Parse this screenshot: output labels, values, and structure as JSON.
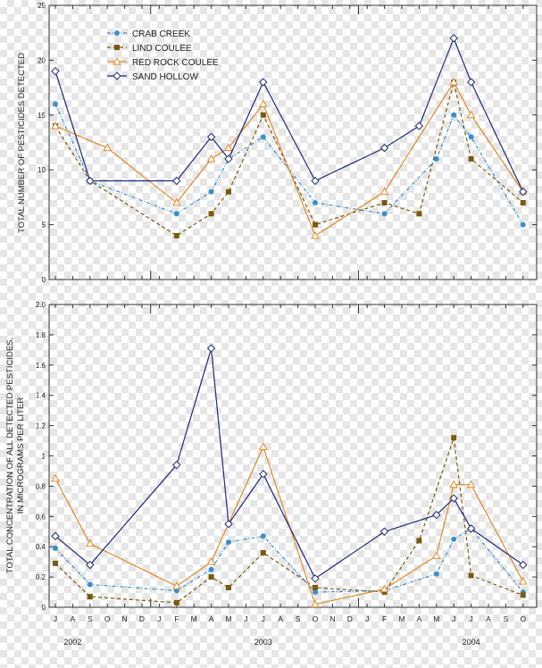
{
  "chart_data": [
    {
      "type": "line",
      "ylabel": "TOTAL NUMBER OF PESTICIDES DETECTED",
      "ylim": [
        0,
        25
      ],
      "yticks": [
        0,
        5,
        10,
        15,
        20,
        25
      ],
      "ytick_labels": [
        "0",
        "5",
        "10",
        "15",
        "20",
        "25"
      ],
      "grid": false,
      "legend_position": "top-left",
      "series": [
        {
          "name": "CRAB CREEK",
          "color": "#3a8fd0",
          "dash": "dashdot",
          "marker": "circle",
          "x": [
            "2002-07",
            "2002-09",
            "2003-02",
            "2003-04",
            "2003-05",
            "2003-07",
            "2003-10",
            "2004-02",
            "2004-05",
            "2004-06",
            "2004-07",
            "2004-10"
          ],
          "values": [
            16,
            9,
            6,
            8,
            11,
            13,
            7,
            6,
            11,
            15,
            13,
            5
          ]
        },
        {
          "name": "LIND COULEE",
          "color": "#7a5a10",
          "dash": "dashed",
          "marker": "square",
          "x": [
            "2002-07",
            "2002-09",
            "2003-02",
            "2003-04",
            "2003-05",
            "2003-07",
            "2003-10",
            "2004-02",
            "2004-04",
            "2004-06",
            "2004-07",
            "2004-10"
          ],
          "values": [
            14,
            9,
            4,
            6,
            8,
            15,
            5,
            7,
            6,
            18,
            11,
            7
          ]
        },
        {
          "name": "RED ROCK COULEE",
          "color": "#e08a2a",
          "dash": "solid",
          "marker": "triangle",
          "x": [
            "2002-07",
            "2002-10",
            "2003-02",
            "2003-04",
            "2003-05",
            "2003-07",
            "2003-10",
            "2004-02",
            "2004-06",
            "2004-07",
            "2004-10"
          ],
          "values": [
            14,
            12,
            7,
            11,
            12,
            16,
            4,
            8,
            18,
            15,
            8
          ]
        },
        {
          "name": "SAND HOLLOW",
          "color": "#1e2a78",
          "dash": "solid",
          "marker": "diamond",
          "x": [
            "2002-07",
            "2002-09",
            "2003-02",
            "2003-04",
            "2003-05",
            "2003-07",
            "2003-10",
            "2004-02",
            "2004-04",
            "2004-06",
            "2004-07",
            "2004-10"
          ],
          "values": [
            19,
            9,
            9,
            13,
            11,
            18,
            9,
            12,
            14,
            22,
            18,
            8
          ]
        }
      ]
    },
    {
      "type": "line",
      "ylabel_lines": [
        "TOTAL CONCENTRATION OF ALL DETECTED PESTICIDES,",
        "IN MICROGRAMS PER LITER"
      ],
      "ylim": [
        0,
        2.0
      ],
      "yticks": [
        0,
        0.2,
        0.4,
        0.6,
        0.8,
        1.0,
        1.2,
        1.4,
        1.6,
        1.8,
        2.0
      ],
      "ytick_labels": [
        "0",
        "0.2",
        "0.4",
        "0.6",
        "0.8",
        "1",
        "1.2",
        "1.4",
        "1.6",
        "1.8",
        "2.0"
      ],
      "grid": false,
      "x_month_labels": [
        "J",
        "A",
        "S",
        "O",
        "N",
        "D",
        "J",
        "F",
        "M",
        "A",
        "M",
        "J",
        "J",
        "A",
        "S",
        "O",
        "N",
        "D",
        "J",
        "F",
        "M",
        "A",
        "M",
        "J",
        "J",
        "A",
        "S",
        "O"
      ],
      "x_year_labels": [
        {
          "label": "2002",
          "month": "2002-08"
        },
        {
          "label": "2003",
          "month": "2003-07"
        },
        {
          "label": "2004",
          "month": "2004-07"
        }
      ],
      "x_range": [
        "2002-07",
        "2004-10"
      ],
      "series": [
        {
          "name": "CRAB CREEK",
          "x": [
            "2002-07",
            "2002-09",
            "2003-02",
            "2003-04",
            "2003-05",
            "2003-07",
            "2003-10",
            "2004-02",
            "2004-05",
            "2004-06",
            "2004-07",
            "2004-10"
          ],
          "values": [
            0.39,
            0.15,
            0.11,
            0.25,
            0.43,
            0.47,
            0.1,
            0.11,
            0.22,
            0.45,
            0.52,
            0.1
          ]
        },
        {
          "name": "LIND COULEE",
          "x": [
            "2002-07",
            "2002-09",
            "2003-02",
            "2003-04",
            "2003-05",
            "2003-07",
            "2003-10",
            "2004-02",
            "2004-04",
            "2004-06",
            "2004-07",
            "2004-10"
          ],
          "values": [
            0.29,
            0.07,
            0.03,
            0.2,
            0.13,
            0.36,
            0.13,
            0.1,
            0.44,
            1.12,
            0.21,
            0.08
          ]
        },
        {
          "name": "RED ROCK COULEE",
          "x": [
            "2002-07",
            "2002-09",
            "2003-02",
            "2003-04",
            "2003-07",
            "2003-10",
            "2004-02",
            "2004-05",
            "2004-06",
            "2004-07",
            "2004-10"
          ],
          "values": [
            0.85,
            0.42,
            0.14,
            0.3,
            1.06,
            0.02,
            0.12,
            0.34,
            0.81,
            0.81,
            0.17
          ]
        },
        {
          "name": "SAND HOLLOW",
          "x": [
            "2002-07",
            "2002-09",
            "2003-02",
            "2003-04",
            "2003-05",
            "2003-07",
            "2003-10",
            "2004-02",
            "2004-05",
            "2004-06",
            "2004-07",
            "2004-10"
          ],
          "values": [
            0.47,
            0.28,
            0.94,
            1.71,
            0.55,
            0.88,
            0.19,
            0.5,
            0.61,
            0.72,
            0.52,
            0.28
          ]
        }
      ]
    }
  ]
}
